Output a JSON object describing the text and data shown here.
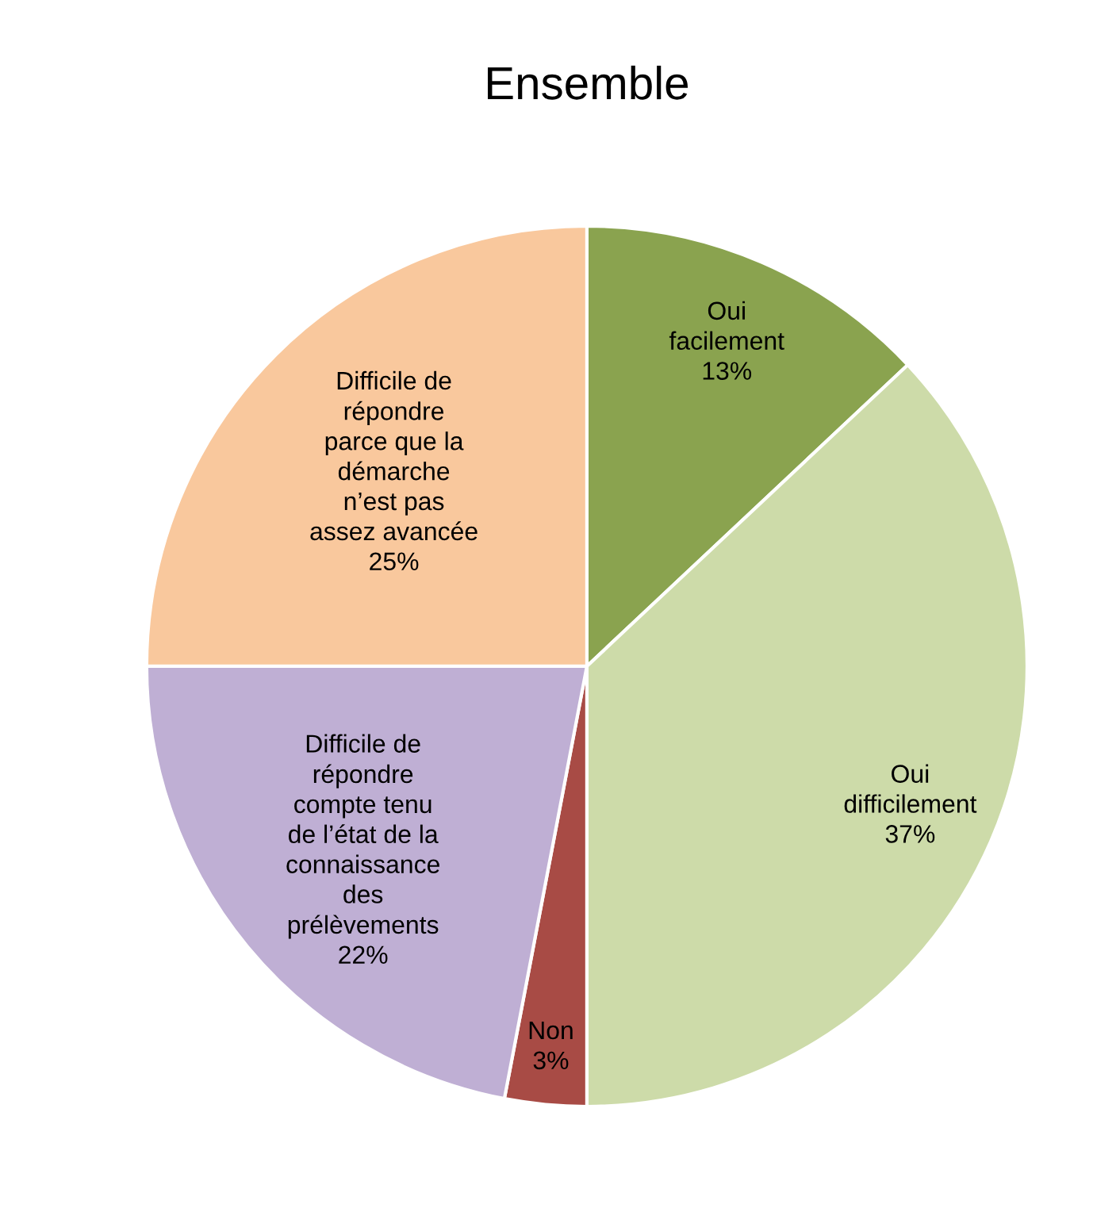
{
  "chart_data": {
    "type": "pie",
    "title": "Ensemble",
    "categories": [
      "Oui\nfacilement",
      "Oui\ndifficilement",
      "Non",
      "Difficile de\nrépondre\ncompte tenu\nde l’état de la\nconnaissance\ndes\nprélèvements",
      "Difficile de\nrépondre\nparce que la\ndémarche\nn’est pas\nassez avancée"
    ],
    "values": [
      13,
      37,
      3,
      22,
      25
    ],
    "colors": [
      "#8aa34f",
      "#cddba9",
      "#a84b45",
      "#bfafd4",
      "#f9c89d"
    ],
    "value_labels": [
      "13%",
      "37%",
      "3%",
      "22%",
      "25%"
    ],
    "legend": false
  }
}
